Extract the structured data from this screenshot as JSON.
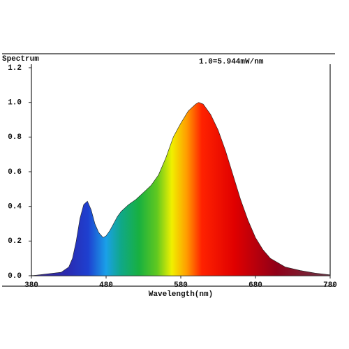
{
  "chart_data": {
    "type": "area",
    "title": "Spectrum",
    "annotation": "1.0=5.944mW/nm",
    "x_label": "Wavelength(nm)",
    "xlim": [
      380,
      780
    ],
    "xticks": [
      380,
      480,
      580,
      680,
      780
    ],
    "ylim": [
      0,
      1.2
    ],
    "yticks": [
      {
        "value": 0,
        "label": "0.0"
      },
      0.2,
      0.4,
      0.6,
      0.8,
      {
        "value": 1,
        "label": "1.0"
      },
      1.2
    ],
    "grid": false,
    "x": [
      380,
      400,
      420,
      430,
      435,
      440,
      445,
      450,
      455,
      460,
      465,
      470,
      476,
      480,
      485,
      490,
      495,
      500,
      510,
      520,
      530,
      540,
      550,
      560,
      570,
      580,
      590,
      600,
      604,
      610,
      620,
      630,
      640,
      650,
      660,
      670,
      680,
      690,
      700,
      720,
      740,
      760,
      780
    ],
    "series": [
      {
        "name": "Spectrum",
        "values": [
          0.0,
          0.01,
          0.02,
          0.05,
          0.1,
          0.2,
          0.33,
          0.41,
          0.43,
          0.38,
          0.3,
          0.25,
          0.22,
          0.23,
          0.26,
          0.3,
          0.34,
          0.37,
          0.41,
          0.44,
          0.48,
          0.52,
          0.58,
          0.68,
          0.8,
          0.88,
          0.95,
          0.99,
          1.0,
          0.99,
          0.93,
          0.84,
          0.72,
          0.58,
          0.44,
          0.32,
          0.22,
          0.15,
          0.1,
          0.05,
          0.03,
          0.015,
          0.005
        ]
      }
    ]
  }
}
